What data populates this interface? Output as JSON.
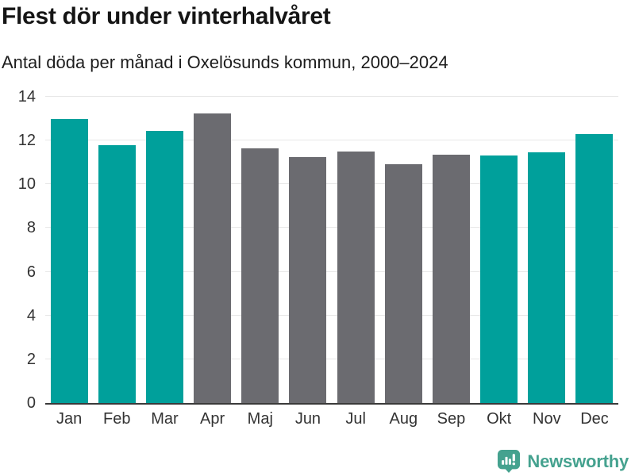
{
  "header": {
    "title": "Flest dör under vinterhalvåret",
    "subtitle": "Antal döda per månad i Oxelösunds kommun, 2000–2024"
  },
  "chart_data": {
    "type": "bar",
    "title": "Flest dör under vinterhalvåret",
    "subtitle": "Antal döda per månad i Oxelösunds kommun, 2000–2024",
    "categories": [
      "Jan",
      "Feb",
      "Mar",
      "Apr",
      "Maj",
      "Jun",
      "Jul",
      "Aug",
      "Sep",
      "Okt",
      "Nov",
      "Dec"
    ],
    "values": [
      13.0,
      11.8,
      12.45,
      13.25,
      11.65,
      11.25,
      11.5,
      10.9,
      11.35,
      11.3,
      11.45,
      12.3
    ],
    "bar_colors": [
      "#00a09b",
      "#00a09b",
      "#00a09b",
      "#6b6b70",
      "#6b6b70",
      "#6b6b70",
      "#6b6b70",
      "#6b6b70",
      "#6b6b70",
      "#00a09b",
      "#00a09b",
      "#00a09b"
    ],
    "highlight_color": "#00a09b",
    "muted_color": "#6b6b70",
    "xlabel": "",
    "ylabel": "",
    "ylim": [
      0,
      14
    ],
    "yticks": [
      0,
      2,
      4,
      6,
      8,
      10,
      12,
      14
    ],
    "grid": "horizontal-light",
    "legend": "none"
  },
  "branding": {
    "logo_text": "Newsworthy",
    "logo_color": "#45a28f",
    "logo_icon": "newsworthy-speech-bubble-bar-chart-icon"
  },
  "colors": {
    "background": "#ffffff",
    "axis_line": "#3a3a3a",
    "gridline": "#e7e7e7",
    "tick_text": "#333333",
    "title_text": "#151515"
  }
}
